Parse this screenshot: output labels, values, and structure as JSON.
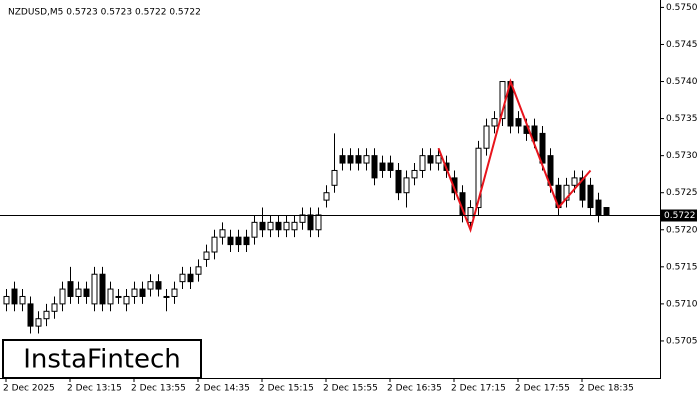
{
  "chart_data": {
    "type": "candlestick",
    "title": "NZDUSD,M5  0.5723 0.5723 0.5722 0.5722",
    "logo": "InstaFintech",
    "categories": [
      "2 Dec 2025",
      null,
      null,
      null,
      null,
      null,
      null,
      null,
      "2 Dec 13:15",
      null,
      null,
      null,
      null,
      null,
      null,
      null,
      "2 Dec 13:55",
      null,
      null,
      null,
      null,
      null,
      null,
      null,
      "2 Dec 14:35",
      null,
      null,
      null,
      null,
      null,
      null,
      null,
      "2 Dec 15:15",
      null,
      null,
      null,
      null,
      null,
      null,
      null,
      "2 Dec 15:55",
      null,
      null,
      null,
      null,
      null,
      null,
      null,
      "2 Dec 16:35",
      null,
      null,
      null,
      null,
      null,
      null,
      null,
      "2 Dec 17:15",
      null,
      null,
      null,
      null,
      null,
      null,
      null,
      "2 Dec 17:55",
      null,
      null,
      null,
      null,
      null,
      null,
      null,
      "2 Dec 18:35",
      null,
      null,
      null
    ],
    "open": [
      0.571,
      0.5712,
      0.571,
      0.571,
      0.5707,
      0.5708,
      0.5709,
      0.571,
      0.5713,
      0.5711,
      0.5712,
      0.571,
      0.5714,
      0.571,
      0.5711,
      0.571,
      0.5711,
      0.5712,
      0.5712,
      0.5713,
      0.5711,
      0.5711,
      0.5713,
      0.5714,
      0.5714,
      0.5716,
      0.5717,
      0.5719,
      0.5719,
      0.5719,
      0.5719,
      0.5719,
      0.5721,
      0.572,
      0.5721,
      0.572,
      0.572,
      0.5721,
      0.5722,
      0.572,
      0.5724,
      0.5726,
      0.573,
      0.573,
      0.573,
      0.5729,
      0.573,
      0.5729,
      0.5729,
      0.5728,
      0.5725,
      0.5727,
      0.5728,
      0.573,
      0.5729,
      0.5729,
      0.5727,
      0.5725,
      0.5721,
      0.5723,
      0.5731,
      0.5734,
      0.5735,
      0.574,
      0.5735,
      0.5734,
      0.5734,
      0.5733,
      0.573,
      0.5726,
      0.5724,
      0.5726,
      0.5727,
      0.5726,
      0.5724,
      0.5723
    ],
    "high": [
      0.5712,
      0.5713,
      0.5712,
      0.5711,
      0.5709,
      0.571,
      0.5711,
      0.5713,
      0.5715,
      0.5713,
      0.5713,
      0.5715,
      0.5715,
      0.5713,
      0.5712,
      0.5712,
      0.5713,
      0.5713,
      0.5714,
      0.5714,
      0.5712,
      0.5713,
      0.5715,
      0.5715,
      0.5716,
      0.5718,
      0.572,
      0.5721,
      0.572,
      0.572,
      0.572,
      0.5722,
      0.5723,
      0.5722,
      0.5722,
      0.5722,
      0.5722,
      0.5723,
      0.5723,
      0.5723,
      0.5726,
      0.5733,
      0.5731,
      0.5731,
      0.5731,
      0.5731,
      0.5731,
      0.573,
      0.573,
      0.5729,
      0.5728,
      0.5729,
      0.5731,
      0.5731,
      0.5731,
      0.573,
      0.5728,
      0.5726,
      0.5724,
      0.5732,
      0.5735,
      0.5736,
      0.574,
      0.574,
      0.5736,
      0.5735,
      0.5735,
      0.5734,
      0.5731,
      0.5727,
      0.5727,
      0.5728,
      0.5728,
      0.5727,
      0.5725,
      0.5723
    ],
    "low": [
      0.5709,
      0.5709,
      0.5709,
      0.5706,
      0.5706,
      0.5707,
      0.5708,
      0.5709,
      0.571,
      0.571,
      0.571,
      0.5709,
      0.5709,
      0.5709,
      0.571,
      0.5709,
      0.571,
      0.571,
      0.5711,
      0.5711,
      0.5709,
      0.571,
      0.5712,
      0.5712,
      0.5713,
      0.5715,
      0.5716,
      0.5718,
      0.5717,
      0.5717,
      0.5717,
      0.5718,
      0.5719,
      0.5719,
      0.5719,
      0.5719,
      0.5719,
      0.572,
      0.5719,
      0.5719,
      0.5723,
      0.5725,
      0.5728,
      0.5728,
      0.5728,
      0.5728,
      0.5726,
      0.5727,
      0.5727,
      0.5724,
      0.5723,
      0.5726,
      0.5727,
      0.5728,
      0.5728,
      0.5727,
      0.5724,
      0.5721,
      0.572,
      0.5722,
      0.573,
      0.5733,
      0.5734,
      0.5733,
      0.5733,
      0.5732,
      0.5731,
      0.5728,
      0.5725,
      0.5722,
      0.5723,
      0.5725,
      0.5723,
      0.5722,
      0.5721,
      0.5722
    ],
    "close": [
      0.5711,
      0.571,
      0.5711,
      0.5707,
      0.5708,
      0.5709,
      0.571,
      0.5712,
      0.5711,
      0.5712,
      0.5711,
      0.5714,
      0.571,
      0.5712,
      0.5711,
      0.5711,
      0.5712,
      0.5711,
      0.5713,
      0.5712,
      0.5711,
      0.5712,
      0.5714,
      0.5713,
      0.5715,
      0.5717,
      0.5719,
      0.572,
      0.5718,
      0.5718,
      0.5718,
      0.5721,
      0.572,
      0.5721,
      0.572,
      0.5721,
      0.5721,
      0.5722,
      0.572,
      0.5722,
      0.5725,
      0.5728,
      0.5729,
      0.5729,
      0.5729,
      0.573,
      0.5727,
      0.5728,
      0.5728,
      0.5725,
      0.5727,
      0.5728,
      0.573,
      0.5729,
      0.573,
      0.5728,
      0.5725,
      0.5722,
      0.5723,
      0.5731,
      0.5734,
      0.5735,
      0.574,
      0.5734,
      0.5734,
      0.5733,
      0.5732,
      0.5729,
      0.5726,
      0.5723,
      0.5726,
      0.5727,
      0.5724,
      0.5723,
      0.5722,
      0.5722
    ],
    "up_color": "#ffffff",
    "down_color": "#000000",
    "last_price": 0.5722,
    "pattern": {
      "color": "#e8141c",
      "x": [
        54,
        58,
        63,
        69,
        73
      ],
      "y": [
        0.5731,
        0.572,
        0.574,
        0.5723,
        0.5728
      ]
    },
    "ylim": [
      0.57,
      0.5751
    ],
    "yticks": [
      0.5705,
      {
        "value": 0.571,
        "label": "0.5710"
      },
      0.5715,
      {
        "value": 0.572,
        "label": "0.5720"
      },
      0.5725,
      {
        "value": 0.573,
        "label": "0.5730"
      },
      0.5735,
      {
        "value": 0.574,
        "label": "0.5740"
      },
      0.5745,
      {
        "value": 0.575,
        "label": "0.5750"
      }
    ]
  }
}
